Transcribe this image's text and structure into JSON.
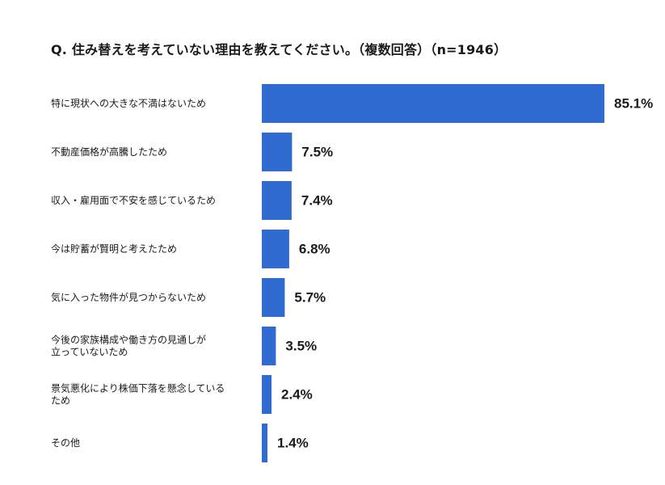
{
  "chart_data": {
    "type": "bar",
    "orientation": "horizontal",
    "title": "Q. 住み替えを考えていない理由を教えてください。（複数回答）（n=1946）",
    "categories": [
      [
        "特に現状への大きな不満はないため"
      ],
      [
        "不動産価格が高騰したため"
      ],
      [
        "収入・雇用面で不安を感じているため"
      ],
      [
        "今は貯蓄が賢明と考えたため"
      ],
      [
        "気に入った物件が見つからないため"
      ],
      [
        "今後の家族構成や働き方の見通しが",
        "立っていないため"
      ],
      [
        "景気悪化により株価下落を懸念している",
        "ため"
      ],
      [
        "その他"
      ]
    ],
    "values": [
      85.1,
      7.5,
      7.4,
      6.8,
      5.7,
      3.5,
      2.4,
      1.4
    ],
    "value_labels": [
      "85.1%",
      "7.5%",
      "7.4%",
      "6.8%",
      "5.7%",
      "3.5%",
      "2.4%",
      "1.4%"
    ],
    "unit": "%",
    "xlim": [
      0,
      85.1
    ],
    "grid": false,
    "legend": "none",
    "bar_color": "#2f6bd0"
  }
}
